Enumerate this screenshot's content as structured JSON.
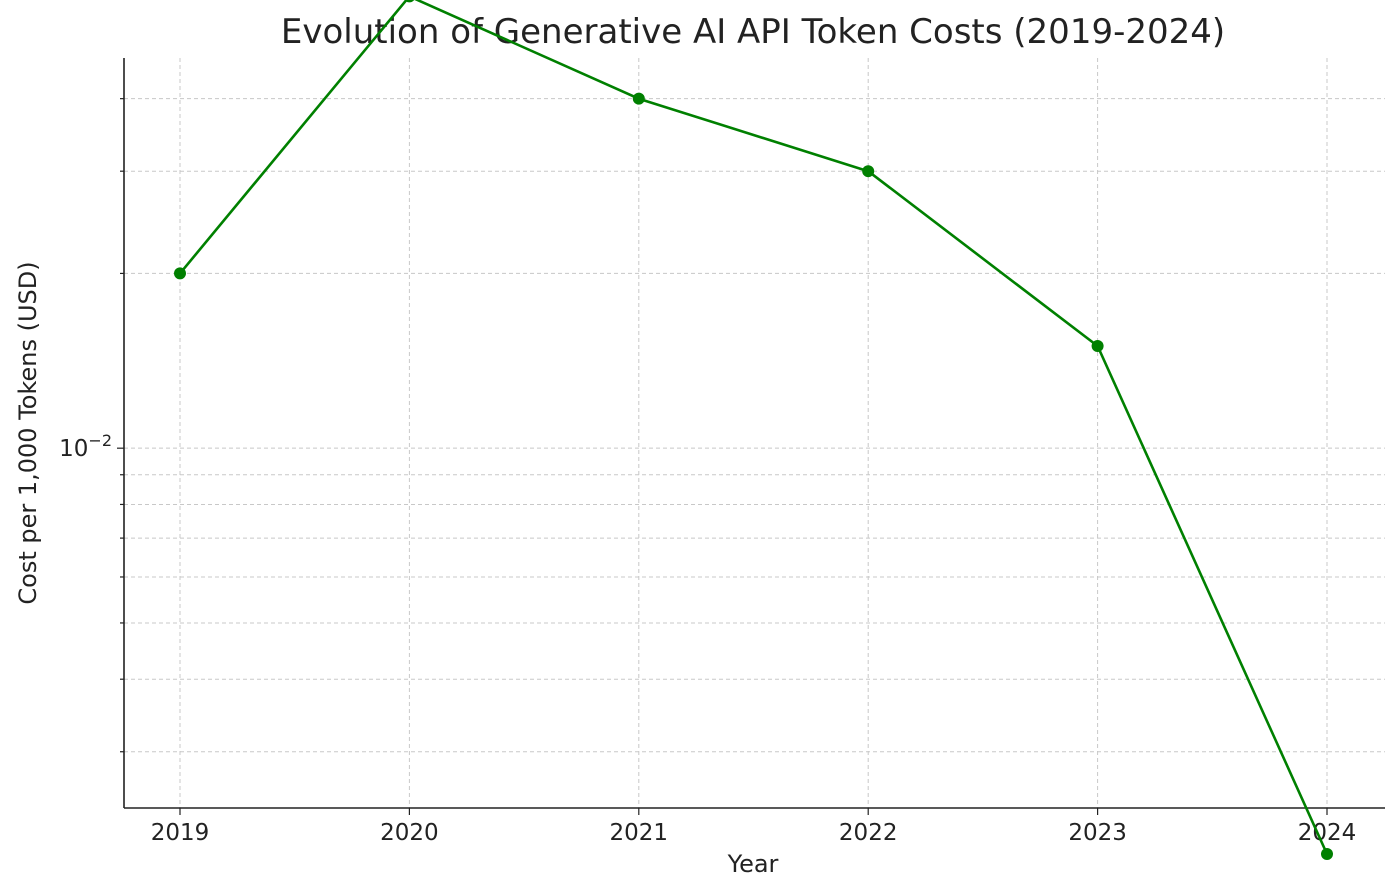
{
  "chart_data": {
    "type": "line",
    "title": "Evolution of Generative AI API Token Costs (2019-2024)",
    "xlabel": "Year",
    "ylabel": "Cost per 1,000 Tokens (USD)",
    "yscale": "log",
    "ylim": [
      0.0024,
      0.047
    ],
    "grid": true,
    "color": "#008000",
    "x": [
      "2019",
      "2020",
      "2021",
      "2022",
      "2023",
      "2024"
    ],
    "series": [
      {
        "values": [
          0.02,
          0.06,
          0.04,
          0.03,
          0.015,
          0.002
        ]
      }
    ],
    "y_ticks": [
      {
        "value": 0.01,
        "base": "10",
        "exp": "−2"
      }
    ]
  }
}
